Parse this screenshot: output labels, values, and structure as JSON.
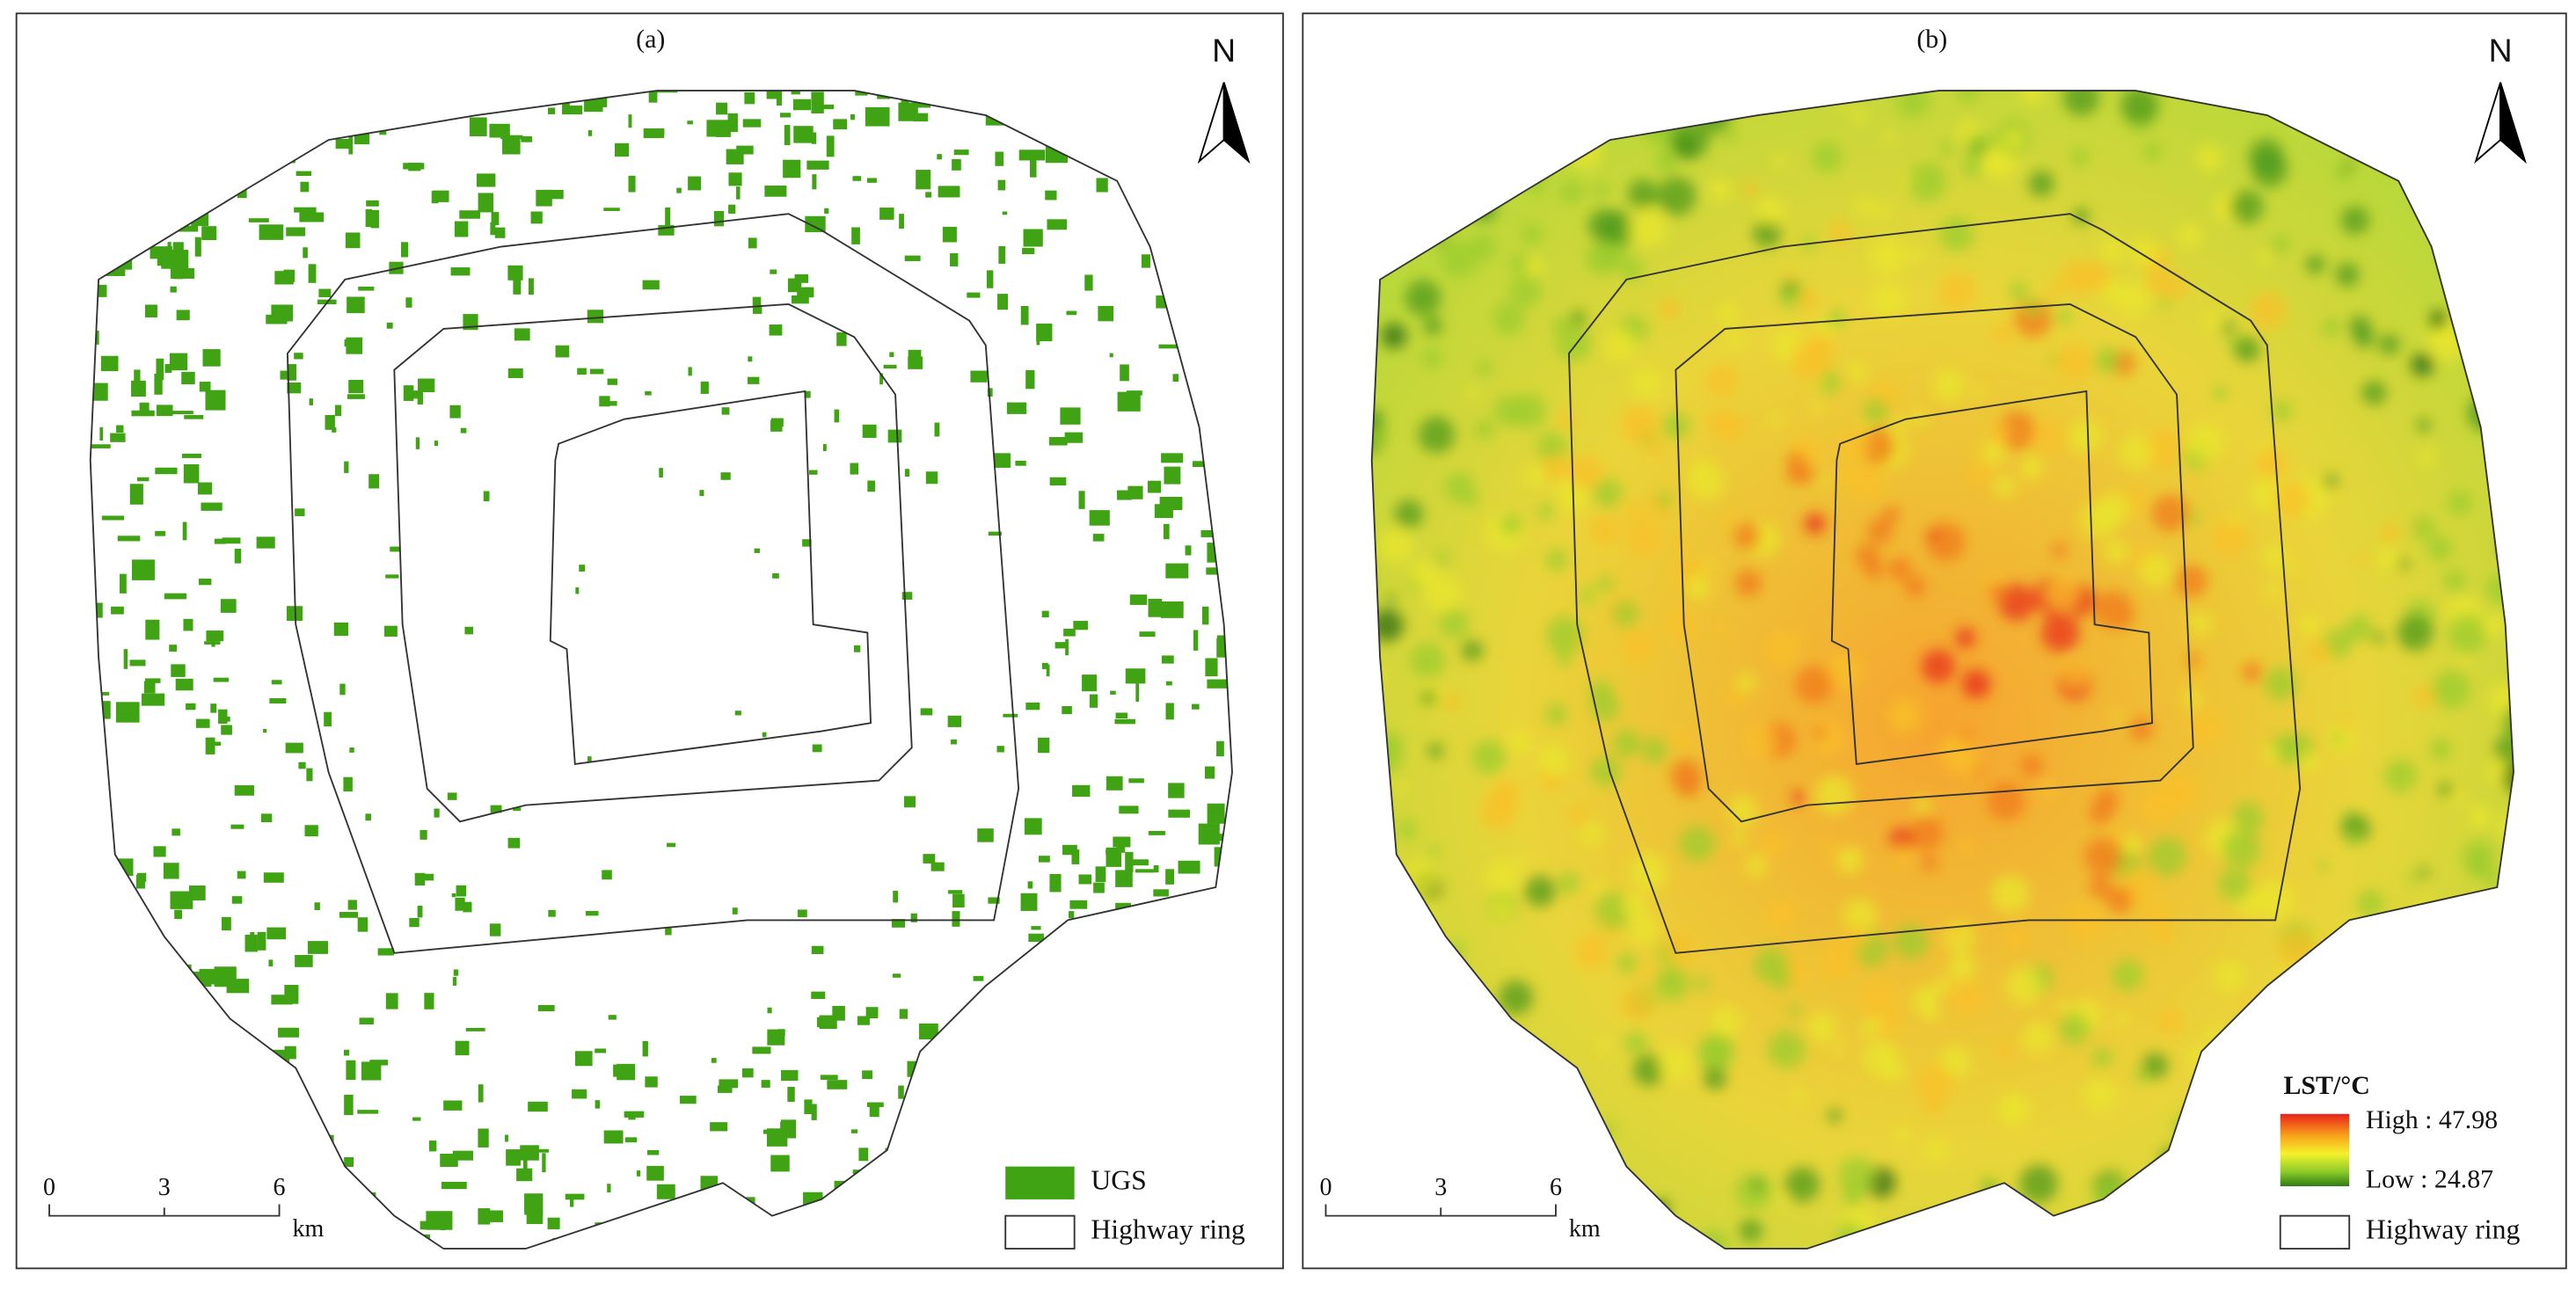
{
  "panels": [
    {
      "label": "(a)",
      "north": "N",
      "scale_bar": {
        "ticks": [
          "0",
          "3",
          "6"
        ],
        "unit": "km"
      },
      "legend": {
        "ugs": "UGS",
        "ring": "Highway ring"
      }
    },
    {
      "label": "(b)",
      "north": "N",
      "scale_bar": {
        "ticks": [
          "0",
          "3",
          "6"
        ],
        "unit": "km"
      },
      "legend": {
        "title": "LST/°C",
        "high": "High : 47.98",
        "low": "Low : 24.87",
        "ring": "Highway ring"
      }
    }
  ]
}
